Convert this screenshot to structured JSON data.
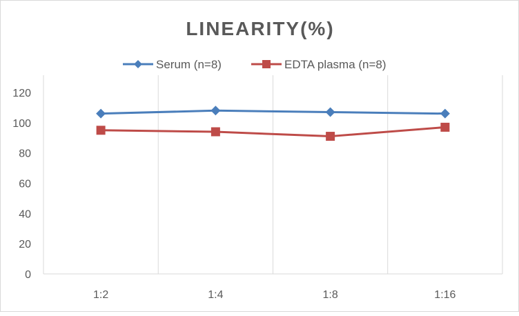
{
  "chart_data": {
    "type": "line",
    "title": "LINEARITY(%)",
    "xlabel": "",
    "ylabel": "",
    "categories": [
      "1:2",
      "1:4",
      "1:8",
      "1:16"
    ],
    "ylim": [
      0,
      120
    ],
    "yticks": [
      0,
      20,
      40,
      60,
      80,
      100,
      120
    ],
    "grid": "vertical",
    "legend": "top",
    "series": [
      {
        "name": "Serum (n=8)",
        "values": [
          106,
          108,
          107,
          106
        ],
        "color": "#4a7ebb",
        "marker": "diamond"
      },
      {
        "name": "EDTA plasma (n=8)",
        "values": [
          95,
          94,
          91,
          97
        ],
        "color": "#be4b48",
        "marker": "square"
      }
    ]
  }
}
